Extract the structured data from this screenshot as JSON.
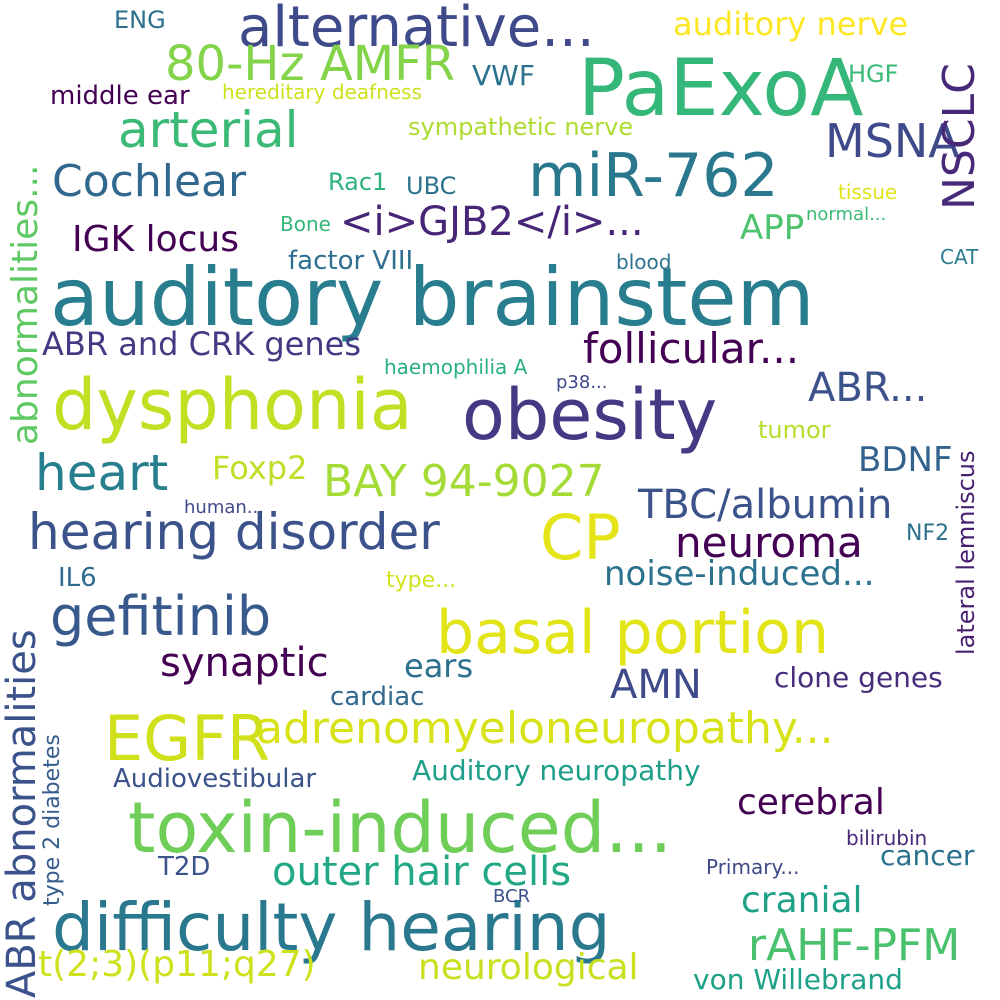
{
  "words": [
    {
      "text": "auditory brainstem",
      "color": "#287d8e"
    },
    {
      "text": "PaExoA",
      "color": "#35b779"
    },
    {
      "text": "obesity",
      "color": "#443983"
    },
    {
      "text": "dysphonia",
      "color": "#c2df23"
    },
    {
      "text": "toxin-induced...",
      "color": "#6ece58"
    },
    {
      "text": "difficulty hearing",
      "color": "#2a788e"
    },
    {
      "text": "basal portion",
      "color": "#e2e418"
    },
    {
      "text": "miR-762",
      "color": "#2a788e"
    },
    {
      "text": "alternative...",
      "color": "#3e4a89"
    },
    {
      "text": "EGFR",
      "color": "#d0e11c"
    },
    {
      "text": "CP",
      "color": "#e5e419"
    },
    {
      "text": "adrenomyeloneuropathy...",
      "color": "#d8e219"
    },
    {
      "text": "hearing disorder",
      "color": "#3b528b"
    },
    {
      "text": "80-Hz AMFR",
      "color": "#84d44b"
    },
    {
      "text": "gefitinib",
      "color": "#38598c"
    },
    {
      "text": "rAHF-PFM",
      "color": "#4ac16d"
    },
    {
      "text": "MSNA",
      "color": "#3e4a89"
    },
    {
      "text": "arterial",
      "color": "#3aba76"
    },
    {
      "text": "heart",
      "color": "#277f8e"
    },
    {
      "text": "BAY 94-9027",
      "color": "#a5db36"
    },
    {
      "text": "TBC/albumin",
      "color": "#3b528b"
    },
    {
      "text": "follicular...",
      "color": "#440154"
    },
    {
      "text": "Cochlear",
      "color": "#31688e"
    },
    {
      "text": "<i>GJB2</i>...",
      "color": "#482677"
    },
    {
      "text": "neuroma",
      "color": "#440154"
    },
    {
      "text": "outer hair cells",
      "color": "#22a884"
    },
    {
      "text": "synaptic",
      "color": "#440154"
    },
    {
      "text": "t(2;3)(p11;q27)",
      "color": "#cde11d"
    },
    {
      "text": "NSCLC",
      "color": "#482878"
    },
    {
      "text": "ABR...",
      "color": "#3b528b"
    },
    {
      "text": "noise-induced...",
      "color": "#2c728e"
    },
    {
      "text": "cerebral",
      "color": "#440154"
    },
    {
      "text": "neurological",
      "color": "#c8e020"
    },
    {
      "text": "cranial",
      "color": "#1fa187"
    },
    {
      "text": "ABR and CRK genes",
      "color": "#443a83"
    },
    {
      "text": "IGK locus",
      "color": "#440154"
    },
    {
      "text": "AMN",
      "color": "#3e4a89"
    },
    {
      "text": "Foxp2",
      "color": "#bddf26"
    },
    {
      "text": "BDNF",
      "color": "#33638d"
    },
    {
      "text": "Auditory neuropathy",
      "color": "#1f9e89"
    },
    {
      "text": "auditory nerve",
      "color": "#fde725"
    },
    {
      "text": "ears",
      "color": "#2d708e"
    },
    {
      "text": "clone genes",
      "color": "#472d7b"
    },
    {
      "text": "von Willebrand",
      "color": "#1fa088"
    },
    {
      "text": "Audiovestibular",
      "color": "#3b528b"
    },
    {
      "text": "ABR abnormalities",
      "color": "#3b528b"
    },
    {
      "text": "abnormalities...",
      "color": "#5ec962"
    },
    {
      "text": "lateral lemniscus",
      "color": "#481f70"
    },
    {
      "text": "type 2 diabetes",
      "color": "#365c8d"
    },
    {
      "text": "sympathetic nerve",
      "color": "#addc30"
    },
    {
      "text": "APP",
      "color": "#4cc26c"
    },
    {
      "text": "middle ear",
      "color": "#440154"
    },
    {
      "text": "cardiac",
      "color": "#31688e"
    },
    {
      "text": "cancer",
      "color": "#2c728e"
    },
    {
      "text": "factor VIII",
      "color": "#2e6e8e"
    },
    {
      "text": "IL6",
      "color": "#2f6b8e"
    },
    {
      "text": "VWF",
      "color": "#2c728e"
    },
    {
      "text": "tumor",
      "color": "#b5de2b"
    },
    {
      "text": "Rac1",
      "color": "#2db27d"
    },
    {
      "text": "UBC",
      "color": "#2c728e"
    },
    {
      "text": "T2D",
      "color": "#3b528b"
    },
    {
      "text": "ENG",
      "color": "#2d708e"
    },
    {
      "text": "HGF",
      "color": "#3aba76"
    },
    {
      "text": "hereditary deafness",
      "color": "#cde11d"
    },
    {
      "text": "type...",
      "color": "#d2e21b"
    },
    {
      "text": "NF2",
      "color": "#2c728e"
    },
    {
      "text": "Primary...",
      "color": "#3e4a89"
    },
    {
      "text": "bilirubin",
      "color": "#482878"
    },
    {
      "text": "haemophilia A",
      "color": "#2ab07f"
    },
    {
      "text": "human...",
      "color": "#3e4a89"
    },
    {
      "text": "Bone",
      "color": "#35b779"
    },
    {
      "text": "normal...",
      "color": "#3aba76"
    },
    {
      "text": "tissue",
      "color": "#dfe318"
    },
    {
      "text": "blood",
      "color": "#2c728e"
    },
    {
      "text": "CAT",
      "color": "#287d8e"
    },
    {
      "text": "p38...",
      "color": "#3e4a89"
    },
    {
      "text": "BCR",
      "color": "#3b528b"
    },
    {
      "text": "·",
      "color": "#35b779"
    }
  ]
}
